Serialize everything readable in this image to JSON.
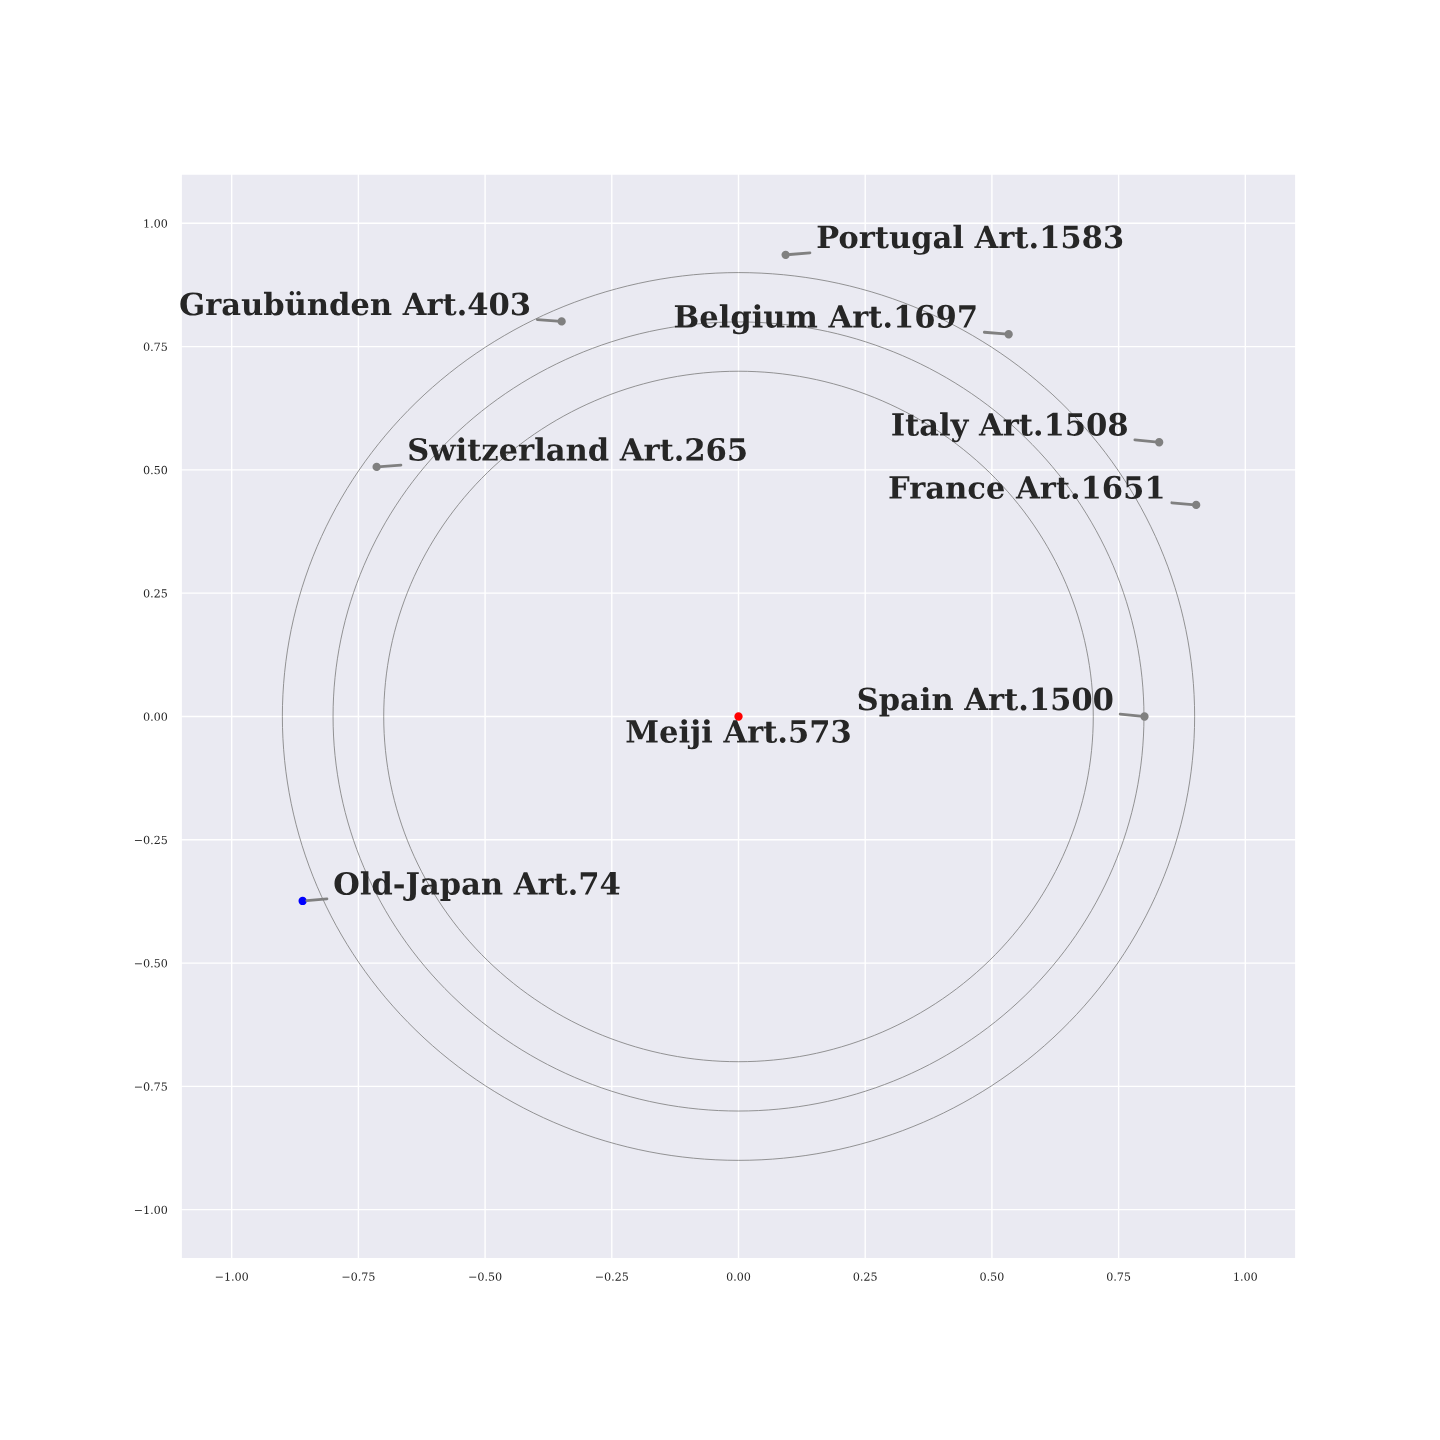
{
  "chart_data": {
    "type": "scatter",
    "xlim": [
      -1.1,
      1.1
    ],
    "ylim": [
      -1.1,
      1.1
    ],
    "xticks": [
      {
        "value": -1,
        "label": "−1.00"
      },
      {
        "value": -0.75,
        "label": "−0.75"
      },
      {
        "value": -0.5,
        "label": "−0.50"
      },
      {
        "value": -0.25,
        "label": "−0.25"
      },
      {
        "value": 0,
        "label": "0.00"
      },
      {
        "value": 0.25,
        "label": "0.25"
      },
      {
        "value": 0.5,
        "label": "0.50"
      },
      {
        "value": 0.75,
        "label": "0.75"
      },
      {
        "value": 1,
        "label": "1.00"
      }
    ],
    "yticks": [
      {
        "value": -1,
        "label": "−1.00"
      },
      {
        "value": -0.75,
        "label": "−0.75"
      },
      {
        "value": -0.5,
        "label": "−0.50"
      },
      {
        "value": -0.25,
        "label": "−0.25"
      },
      {
        "value": 0,
        "label": "0.00"
      },
      {
        "value": 0.25,
        "label": "0.25"
      },
      {
        "value": 0.5,
        "label": "0.50"
      },
      {
        "value": 0.75,
        "label": "0.75"
      },
      {
        "value": 1,
        "label": "1.00"
      }
    ],
    "grid": true,
    "marker": "circle",
    "series": [
      {
        "x": [
          0,
          0.093,
          -0.349,
          0.533,
          -0.714,
          0.83,
          0.903,
          0.801,
          -0.86
        ],
        "values": [
          0,
          0.936,
          0.801,
          0.775,
          0.506,
          0.556,
          0.429,
          0,
          -0.374
        ],
        "colors": [
          "#ff0000",
          "#808080",
          "#808080",
          "#808080",
          "#808080",
          "#808080",
          "#808080",
          "#808080",
          "#0000ff"
        ]
      }
    ],
    "annotations": [
      {
        "text": "Meiji Art.573",
        "x": 0,
        "y": 0
      },
      {
        "text": "Portugal Art.1583",
        "x": 0.093,
        "y": 0.936
      },
      {
        "text": "Graubünden Art.403",
        "x": -0.349,
        "y": 0.801
      },
      {
        "text": "Belgium Art.1697",
        "x": 0.533,
        "y": 0.775
      },
      {
        "text": "Switzerland Art.265",
        "x": -0.714,
        "y": 0.506
      },
      {
        "text": "Italy Art.1508",
        "x": 0.83,
        "y": 0.556
      },
      {
        "text": "France Art.1651",
        "x": 0.903,
        "y": 0.429
      },
      {
        "text": "Spain Art.1500",
        "x": 0.801,
        "y": 0
      },
      {
        "text": "Old-Japan Art.74",
        "x": -0.86,
        "y": -0.374
      }
    ]
  }
}
